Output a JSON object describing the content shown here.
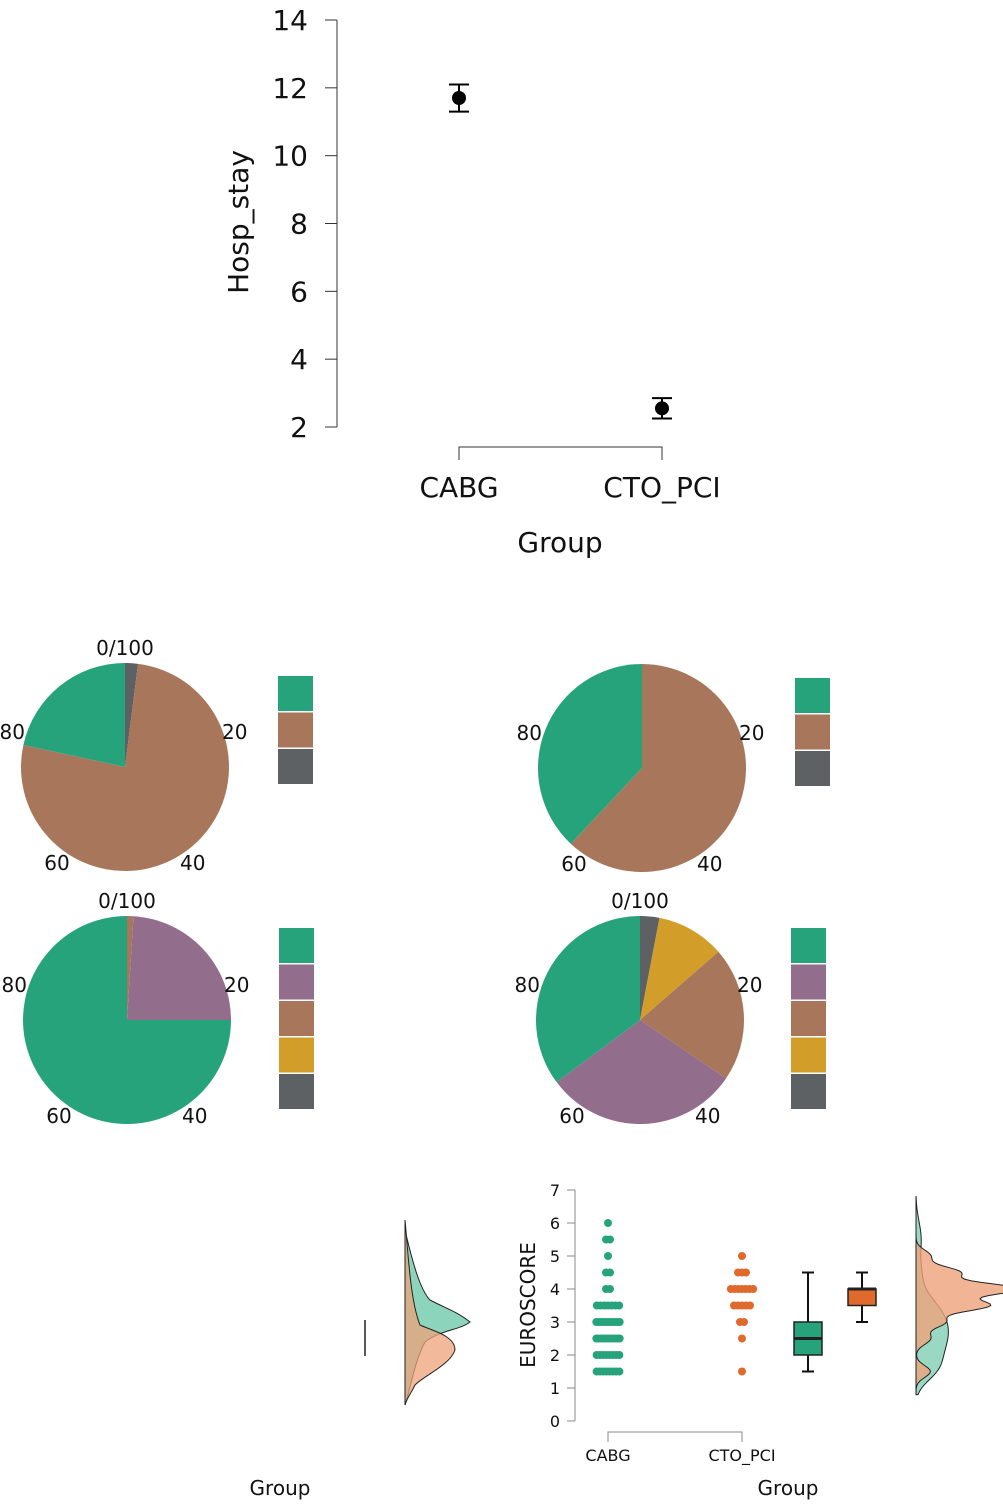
{
  "colors": {
    "green": "#27a37c",
    "brown": "#a8775b",
    "grey": "#5d6163",
    "purple": "#936d8c",
    "gold": "#d39d2a",
    "orange": "#e06a2b",
    "orange_light": "#eda27a",
    "green_light": "#7fcfb5"
  },
  "chart_data": [
    {
      "type": "scatter",
      "subtype": "mean-with-error-bars",
      "xlabel": "Group",
      "ylabel": "Hosp_stay",
      "categories": [
        "CABG",
        "CTO_PCI"
      ],
      "ylim": [
        2,
        14
      ],
      "yticks": [
        2,
        4,
        6,
        8,
        10,
        12,
        14
      ],
      "means": [
        11.7,
        2.55
      ],
      "ci_lower": [
        11.3,
        2.25
      ],
      "ci_upper": [
        12.1,
        2.85
      ]
    },
    {
      "type": "pie",
      "tick_labels": [
        "0/100",
        "20",
        "40",
        "60",
        "80"
      ],
      "slices": [
        {
          "color": "green",
          "value": 21.6
        },
        {
          "color": "brown",
          "value": 76.4
        },
        {
          "color": "grey",
          "value": 2.0
        }
      ],
      "draw_order": [
        "grey",
        "brown",
        "green"
      ]
    },
    {
      "type": "pie",
      "tick_labels": [
        "20",
        "40",
        "60",
        "80"
      ],
      "slices": [
        {
          "color": "green",
          "value": 38
        },
        {
          "color": "brown",
          "value": 62
        },
        {
          "color": "grey",
          "value": 0
        }
      ],
      "draw_order": [
        "brown",
        "green"
      ]
    },
    {
      "type": "pie",
      "tick_labels": [
        "0/100",
        "20",
        "40",
        "60",
        "80"
      ],
      "slices": [
        {
          "color": "green",
          "value": 75
        },
        {
          "color": "purple",
          "value": 24
        },
        {
          "color": "brown",
          "value": 1
        },
        {
          "color": "gold",
          "value": 0
        },
        {
          "color": "grey",
          "value": 0
        }
      ],
      "draw_order": [
        "brown",
        "purple",
        "green"
      ]
    },
    {
      "type": "pie",
      "tick_labels": [
        "0/100",
        "20",
        "40",
        "60",
        "80"
      ],
      "slices": [
        {
          "color": "green",
          "value": 35.2
        },
        {
          "color": "purple",
          "value": 30.3
        },
        {
          "color": "brown",
          "value": 20.9
        },
        {
          "color": "gold",
          "value": 10.6
        },
        {
          "color": "grey",
          "value": 3.0
        }
      ],
      "draw_order": [
        "grey",
        "gold",
        "brown",
        "purple",
        "green"
      ]
    },
    {
      "type": "scatter",
      "subtype": "raincloud",
      "xlabel": "Group",
      "ylabel": "",
      "partially_visible": true
    },
    {
      "type": "scatter",
      "subtype": "raincloud",
      "xlabel": "Group",
      "ylabel": "EUROSCORE",
      "categories": [
        "CABG",
        "CTO_PCI"
      ],
      "ylim": [
        0,
        7
      ],
      "yticks": [
        0,
        1,
        2,
        3,
        4,
        5,
        6,
        7
      ],
      "points": {
        "CABG": [
          [
            1.5,
            8
          ],
          [
            2,
            8
          ],
          [
            2.5,
            10
          ],
          [
            3,
            10
          ],
          [
            3.5,
            7
          ],
          [
            4,
            2
          ],
          [
            4.5,
            2
          ],
          [
            5,
            1
          ],
          [
            5.5,
            2
          ],
          [
            6,
            1
          ]
        ],
        "CTO_PCI": [
          [
            1.5,
            1
          ],
          [
            2.5,
            1
          ],
          [
            3,
            2
          ],
          [
            3.5,
            5
          ],
          [
            4,
            7
          ],
          [
            4.5,
            3
          ],
          [
            5,
            1
          ]
        ]
      },
      "boxes": {
        "CABG": {
          "min": 1.5,
          "q1": 2,
          "median": 2.5,
          "q3": 3,
          "max": 4.5
        },
        "CTO_PCI": {
          "min": 3,
          "q1": 3.5,
          "median": 4,
          "q3": 4,
          "max": 4.5
        }
      }
    }
  ]
}
